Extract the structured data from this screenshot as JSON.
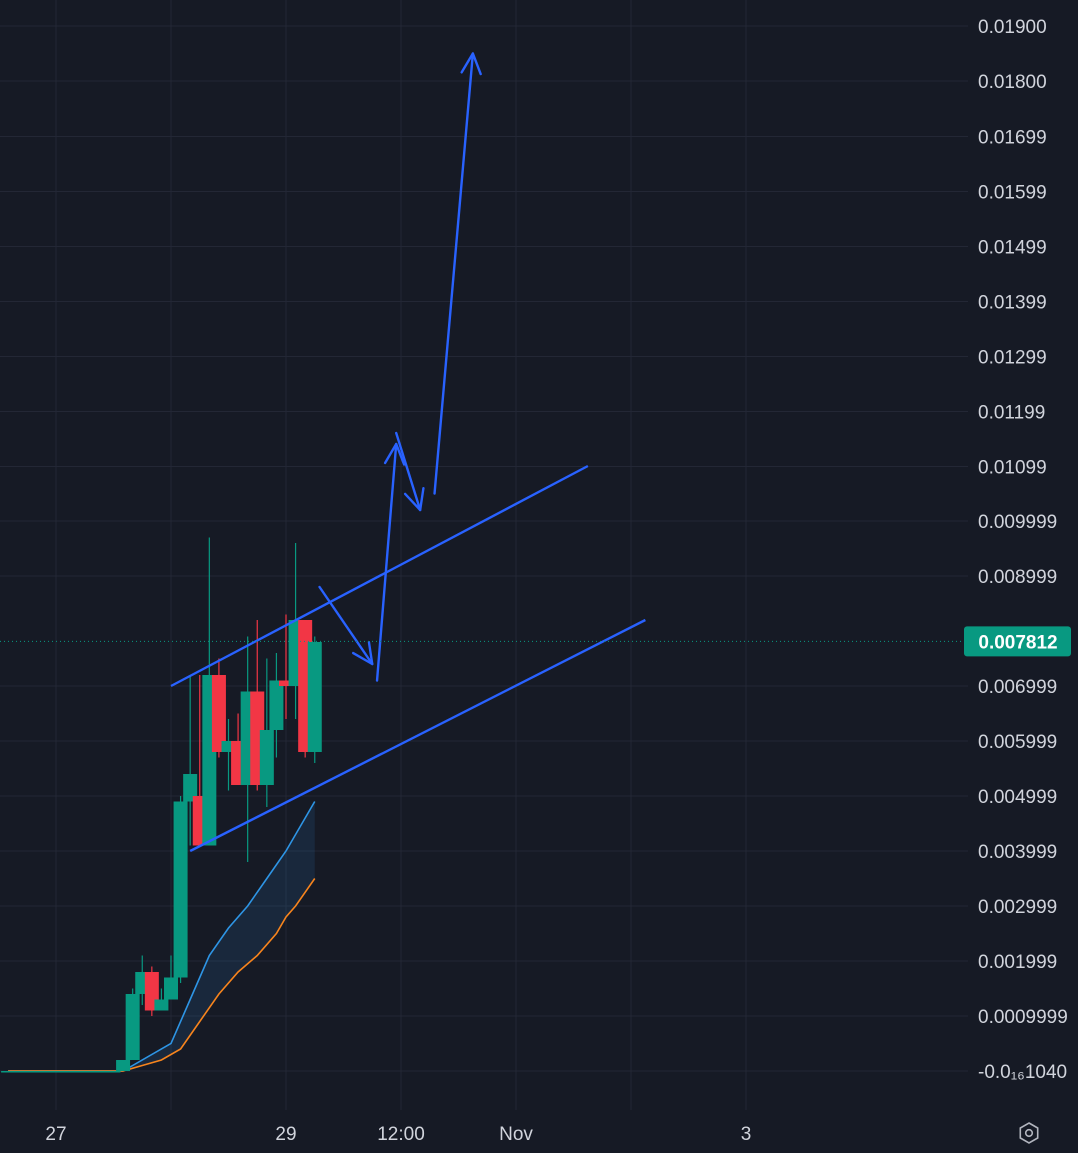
{
  "chart_data": {
    "type": "candlestick",
    "y_axis": {
      "ticks": [
        {
          "value": 0.019,
          "label": "0.01900"
        },
        {
          "value": 0.018,
          "label": "0.01800"
        },
        {
          "value": 0.01699,
          "label": "0.01699"
        },
        {
          "value": 0.01599,
          "label": "0.01599"
        },
        {
          "value": 0.01499,
          "label": "0.01499"
        },
        {
          "value": 0.01399,
          "label": "0.01399"
        },
        {
          "value": 0.01299,
          "label": "0.01299"
        },
        {
          "value": 0.01199,
          "label": "0.01199"
        },
        {
          "value": 0.01099,
          "label": "0.01099"
        },
        {
          "value": 0.009999,
          "label": "0.009999"
        },
        {
          "value": 0.008999,
          "label": "0.008999"
        },
        {
          "value": 0.006999,
          "label": "0.006999"
        },
        {
          "value": 0.005999,
          "label": "0.005999"
        },
        {
          "value": 0.004999,
          "label": "0.004999"
        },
        {
          "value": 0.003999,
          "label": "0.003999"
        },
        {
          "value": 0.002999,
          "label": "0.002999"
        },
        {
          "value": 0.001999,
          "label": "0.001999"
        },
        {
          "value": 0.0009999,
          "label": "0.0009999"
        },
        {
          "value": 0.0,
          "label": "-0.0₁₆1040"
        }
      ],
      "range": [
        -5e-05,
        0.0195
      ]
    },
    "x_axis": {
      "ticks": [
        {
          "t": 0,
          "label": "27"
        },
        {
          "t": 24,
          "label": "29"
        },
        {
          "t": 36,
          "label": "12:00"
        },
        {
          "t": 48,
          "label": "Nov"
        },
        {
          "t": 72,
          "label": "3"
        }
      ],
      "range": [
        -5,
        83
      ]
    },
    "current_price": {
      "value": 0.007812,
      "label": "0.007812",
      "color": "#089981"
    },
    "candles": [
      {
        "t": -5,
        "o": 0.0,
        "h": 0.0,
        "l": 0.0,
        "c": 0.0
      },
      {
        "t": -4,
        "o": 0.0,
        "h": 0.0,
        "l": 0.0,
        "c": 0.0
      },
      {
        "t": -3,
        "o": 0.0,
        "h": 0.0,
        "l": 0.0,
        "c": 0.0
      },
      {
        "t": -2,
        "o": 0.0,
        "h": 0.0,
        "l": 0.0,
        "c": 0.0
      },
      {
        "t": -1,
        "o": 0.0,
        "h": 0.0,
        "l": 0.0,
        "c": 0.0
      },
      {
        "t": 0,
        "o": 0.0,
        "h": 0.0,
        "l": 0.0,
        "c": 0.0
      },
      {
        "t": 1,
        "o": 0.0,
        "h": 0.0,
        "l": 0.0,
        "c": 0.0
      },
      {
        "t": 2,
        "o": 0.0,
        "h": 0.0,
        "l": 0.0,
        "c": 0.0
      },
      {
        "t": 3,
        "o": 0.0,
        "h": 0.0,
        "l": 0.0,
        "c": 0.0
      },
      {
        "t": 4,
        "o": 0.0,
        "h": 0.0,
        "l": 0.0,
        "c": 0.0
      },
      {
        "t": 5,
        "o": 0.0,
        "h": 0.0,
        "l": 0.0,
        "c": 0.0
      },
      {
        "t": 6,
        "o": 0.0,
        "h": 0.0,
        "l": 0.0,
        "c": 0.0
      },
      {
        "t": 7,
        "o": 0.0,
        "h": 0.0002,
        "l": 0.0,
        "c": 0.0002
      },
      {
        "t": 8,
        "o": 0.0002,
        "h": 0.0015,
        "l": 0.0002,
        "c": 0.0014
      },
      {
        "t": 9,
        "o": 0.0014,
        "h": 0.0021,
        "l": 0.0012,
        "c": 0.0018
      },
      {
        "t": 10,
        "o": 0.0018,
        "h": 0.0019,
        "l": 0.001,
        "c": 0.0011
      },
      {
        "t": 11,
        "o": 0.0011,
        "h": 0.0015,
        "l": 0.0011,
        "c": 0.0013
      },
      {
        "t": 12,
        "o": 0.0013,
        "h": 0.0021,
        "l": 0.0013,
        "c": 0.0017
      },
      {
        "t": 13,
        "o": 0.0017,
        "h": 0.005,
        "l": 0.0016,
        "c": 0.0049
      },
      {
        "t": 14,
        "o": 0.0049,
        "h": 0.0072,
        "l": 0.0041,
        "c": 0.0054
      },
      {
        "t": 15,
        "o": 0.005,
        "h": 0.0072,
        "l": 0.0041,
        "c": 0.0041
      },
      {
        "t": 16,
        "o": 0.0041,
        "h": 0.0097,
        "l": 0.0042,
        "c": 0.0072
      },
      {
        "t": 17,
        "o": 0.0072,
        "h": 0.0075,
        "l": 0.0057,
        "c": 0.0058
      },
      {
        "t": 18,
        "o": 0.0058,
        "h": 0.0064,
        "l": 0.0051,
        "c": 0.006
      },
      {
        "t": 19,
        "o": 0.006,
        "h": 0.0065,
        "l": 0.0052,
        "c": 0.0052
      },
      {
        "t": 20,
        "o": 0.0052,
        "h": 0.0079,
        "l": 0.0038,
        "c": 0.0069
      },
      {
        "t": 21,
        "o": 0.0069,
        "h": 0.0082,
        "l": 0.0051,
        "c": 0.0052
      },
      {
        "t": 22,
        "o": 0.0052,
        "h": 0.0075,
        "l": 0.0048,
        "c": 0.0062
      },
      {
        "t": 23,
        "o": 0.0062,
        "h": 0.0076,
        "l": 0.0057,
        "c": 0.0071
      },
      {
        "t": 24,
        "o": 0.0071,
        "h": 0.0083,
        "l": 0.0064,
        "c": 0.007
      },
      {
        "t": 25,
        "o": 0.007,
        "h": 0.0096,
        "l": 0.0064,
        "c": 0.0082
      },
      {
        "t": 26,
        "o": 0.0082,
        "h": 0.0082,
        "l": 0.0057,
        "c": 0.0058
      },
      {
        "t": 27,
        "o": 0.0058,
        "h": 0.0079,
        "l": 0.0056,
        "c": 0.0078
      }
    ],
    "ma_series": [
      {
        "color": "#2e95e5",
        "points": [
          [
            -5,
            0.0
          ],
          [
            7,
            0.0
          ],
          [
            12,
            0.0005
          ],
          [
            14,
            0.0013
          ],
          [
            16,
            0.0021
          ],
          [
            18,
            0.0026
          ],
          [
            20,
            0.003
          ],
          [
            22,
            0.0035
          ],
          [
            24,
            0.004
          ],
          [
            26,
            0.0046
          ],
          [
            27,
            0.0049
          ]
        ]
      },
      {
        "color": "#f7841d",
        "points": [
          [
            -5,
            0.0
          ],
          [
            7,
            0.0
          ],
          [
            9,
            0.0001
          ],
          [
            11,
            0.0002
          ],
          [
            13,
            0.0004
          ],
          [
            15,
            0.0009
          ],
          [
            17,
            0.0014
          ],
          [
            19,
            0.0018
          ],
          [
            21,
            0.0021
          ],
          [
            23,
            0.0025
          ],
          [
            24,
            0.0028
          ],
          [
            25,
            0.003
          ],
          [
            27,
            0.0035
          ]
        ]
      }
    ],
    "drawings": {
      "color": "#2962ff",
      "trend_lines": [
        {
          "from": [
            12,
            0.007
          ],
          "to": [
            55.5,
            0.011
          ]
        },
        {
          "from": [
            14,
            0.004
          ],
          "to": [
            61.5,
            0.0082
          ]
        }
      ],
      "arrows": [
        {
          "points": [
            [
              27.5,
              0.0088
            ],
            [
              33,
              0.0074
            ]
          ]
        },
        {
          "points": [
            [
              33.5,
              0.0071
            ],
            [
              35.5,
              0.0114
            ]
          ]
        },
        {
          "points": [
            [
              35.5,
              0.0116
            ],
            [
              38,
              0.0102
            ]
          ]
        },
        {
          "points": [
            [
              39.5,
              0.0105
            ],
            [
              43.5,
              0.0185
            ]
          ]
        }
      ]
    }
  }
}
